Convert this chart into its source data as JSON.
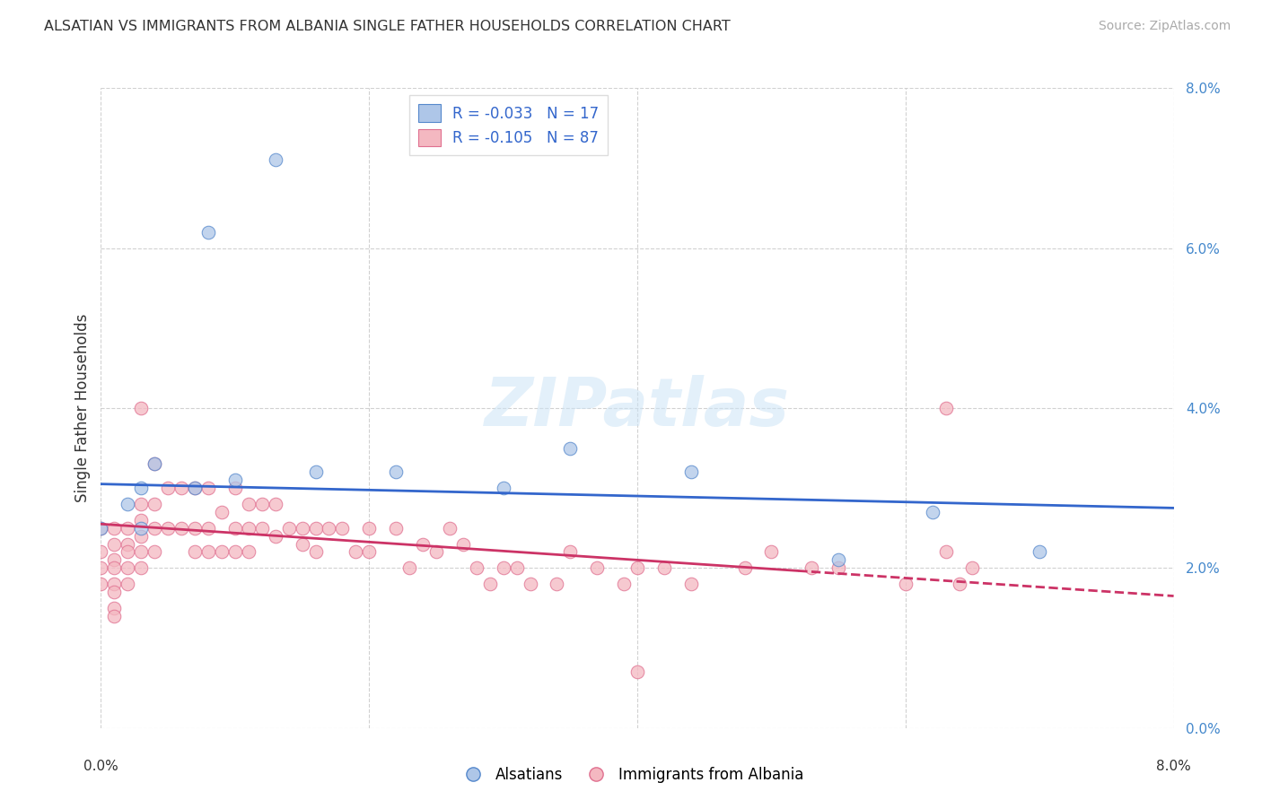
{
  "title": "ALSATIAN VS IMMIGRANTS FROM ALBANIA SINGLE FATHER HOUSEHOLDS CORRELATION CHART",
  "source": "Source: ZipAtlas.com",
  "ylabel": "Single Father Households",
  "legend_label_blue": "Alsatians",
  "legend_label_pink": "Immigrants from Albania",
  "R_blue": -0.033,
  "N_blue": 17,
  "R_pink": -0.105,
  "N_pink": 87,
  "blue_color": "#aec6e8",
  "pink_color": "#f4b8c1",
  "blue_edge_color": "#5588cc",
  "pink_edge_color": "#e07090",
  "blue_line_color": "#3366cc",
  "pink_line_color": "#cc3366",
  "watermark_color": "#ddeeff",
  "blue_points_x": [
    0.013,
    0.008,
    0.0,
    0.002,
    0.003,
    0.003,
    0.004,
    0.007,
    0.01,
    0.016,
    0.022,
    0.03,
    0.044,
    0.062,
    0.07,
    0.055,
    0.035
  ],
  "blue_points_y": [
    0.071,
    0.062,
    0.025,
    0.028,
    0.03,
    0.025,
    0.033,
    0.03,
    0.031,
    0.032,
    0.032,
    0.03,
    0.032,
    0.027,
    0.022,
    0.021,
    0.035
  ],
  "pink_points_x": [
    0.0,
    0.0,
    0.0,
    0.0,
    0.001,
    0.001,
    0.001,
    0.001,
    0.001,
    0.001,
    0.001,
    0.001,
    0.002,
    0.002,
    0.002,
    0.002,
    0.002,
    0.003,
    0.003,
    0.003,
    0.003,
    0.003,
    0.003,
    0.004,
    0.004,
    0.004,
    0.004,
    0.005,
    0.005,
    0.006,
    0.006,
    0.007,
    0.007,
    0.007,
    0.008,
    0.008,
    0.008,
    0.009,
    0.009,
    0.01,
    0.01,
    0.01,
    0.011,
    0.011,
    0.011,
    0.012,
    0.012,
    0.013,
    0.013,
    0.014,
    0.015,
    0.015,
    0.016,
    0.016,
    0.017,
    0.018,
    0.019,
    0.02,
    0.02,
    0.022,
    0.023,
    0.024,
    0.025,
    0.026,
    0.027,
    0.028,
    0.029,
    0.03,
    0.031,
    0.032,
    0.034,
    0.035,
    0.037,
    0.039,
    0.04,
    0.042,
    0.044,
    0.048,
    0.05,
    0.053,
    0.055,
    0.06,
    0.063,
    0.063,
    0.065,
    0.064,
    0.04
  ],
  "pink_points_y": [
    0.025,
    0.022,
    0.02,
    0.018,
    0.025,
    0.023,
    0.021,
    0.02,
    0.018,
    0.017,
    0.015,
    0.014,
    0.025,
    0.023,
    0.022,
    0.02,
    0.018,
    0.04,
    0.028,
    0.026,
    0.024,
    0.022,
    0.02,
    0.033,
    0.028,
    0.025,
    0.022,
    0.03,
    0.025,
    0.03,
    0.025,
    0.03,
    0.025,
    0.022,
    0.03,
    0.025,
    0.022,
    0.027,
    0.022,
    0.03,
    0.025,
    0.022,
    0.028,
    0.025,
    0.022,
    0.028,
    0.025,
    0.028,
    0.024,
    0.025,
    0.025,
    0.023,
    0.025,
    0.022,
    0.025,
    0.025,
    0.022,
    0.025,
    0.022,
    0.025,
    0.02,
    0.023,
    0.022,
    0.025,
    0.023,
    0.02,
    0.018,
    0.02,
    0.02,
    0.018,
    0.018,
    0.022,
    0.02,
    0.018,
    0.02,
    0.02,
    0.018,
    0.02,
    0.022,
    0.02,
    0.02,
    0.018,
    0.022,
    0.04,
    0.02,
    0.018,
    0.007
  ]
}
